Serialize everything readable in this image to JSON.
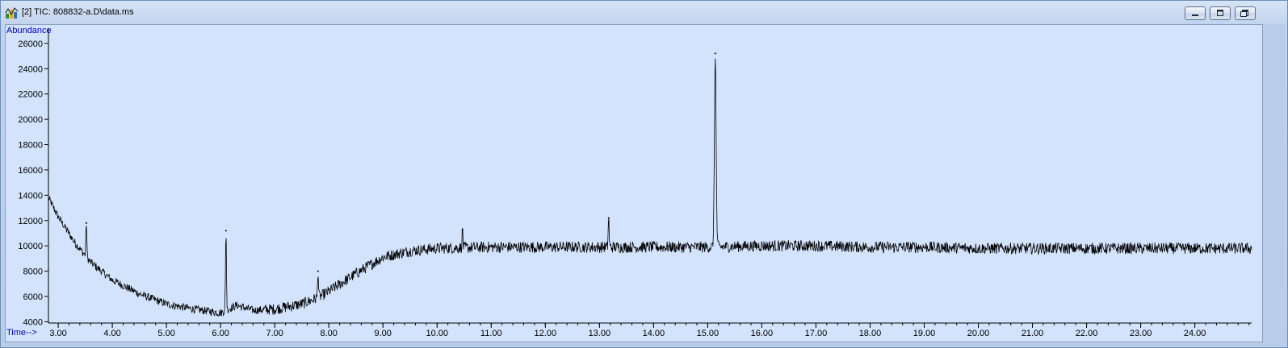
{
  "window": {
    "title": "[2] TIC: 808832-a.D\\data.ms",
    "icon": "chromatogram-app-icon",
    "buttons": {
      "minimize": "minimize-icon",
      "maximize": "maximize-icon",
      "close": "close-icon"
    }
  },
  "chart_data": {
    "type": "line",
    "title": "",
    "xlabel": "Time-->",
    "ylabel": "Abundance",
    "xlim": [
      2.82,
      25.05
    ],
    "ylim": [
      3900,
      27200
    ],
    "xticks": [
      3,
      4,
      5,
      6,
      7,
      8,
      9,
      10,
      11,
      12,
      13,
      14,
      15,
      16,
      17,
      18,
      19,
      20,
      21,
      22,
      23,
      24
    ],
    "xtick_labels": [
      "3.00",
      "4.00",
      "5.00",
      "6.00",
      "7.00",
      "8.00",
      "9.00",
      "10.00",
      "11.00",
      "12.00",
      "13.00",
      "14.00",
      "15.00",
      "16.00",
      "17.00",
      "18.00",
      "19.00",
      "20.00",
      "21.00",
      "22.00",
      "23.00",
      "24.00"
    ],
    "yticks": [
      4000,
      6000,
      8000,
      10000,
      12000,
      14000,
      16000,
      18000,
      20000,
      22000,
      24000,
      26000
    ],
    "ytick_labels": [
      "4000",
      "6000",
      "8000",
      "10000",
      "12000",
      "14000",
      "16000",
      "18000",
      "20000",
      "22000",
      "24000",
      "26000"
    ],
    "grid": false,
    "line_color": "#000000",
    "background_color": "#d3e3fc",
    "baseline": {
      "x": [
        2.82,
        3.0,
        3.3,
        3.6,
        4.0,
        4.5,
        5.0,
        5.5,
        6.0,
        6.3,
        6.6,
        7.0,
        7.5,
        7.8,
        8.0,
        8.5,
        9.0,
        9.5,
        10.0,
        11.0,
        12.0,
        13.0,
        14.0,
        15.0,
        16.0,
        17.0,
        18.0,
        19.0,
        20.0,
        21.0,
        22.0,
        23.0,
        24.0,
        25.05
      ],
      "y": [
        13800,
        12300,
        10300,
        8700,
        7300,
        6200,
        5400,
        5000,
        4700,
        5300,
        4900,
        5000,
        5400,
        5900,
        6400,
        7800,
        9100,
        9600,
        9800,
        9900,
        9900,
        9900,
        9900,
        9900,
        10000,
        10000,
        9900,
        9900,
        9800,
        9800,
        9800,
        9800,
        9800,
        9800
      ]
    },
    "noise_amplitude": 450,
    "peaks": [
      {
        "x": 3.52,
        "y": 11800
      },
      {
        "x": 6.1,
        "y": 11200
      },
      {
        "x": 7.8,
        "y": 8000
      },
      {
        "x": 10.47,
        "y": 11300
      },
      {
        "x": 13.17,
        "y": 12200
      },
      {
        "x": 15.14,
        "y": 25200
      }
    ]
  }
}
